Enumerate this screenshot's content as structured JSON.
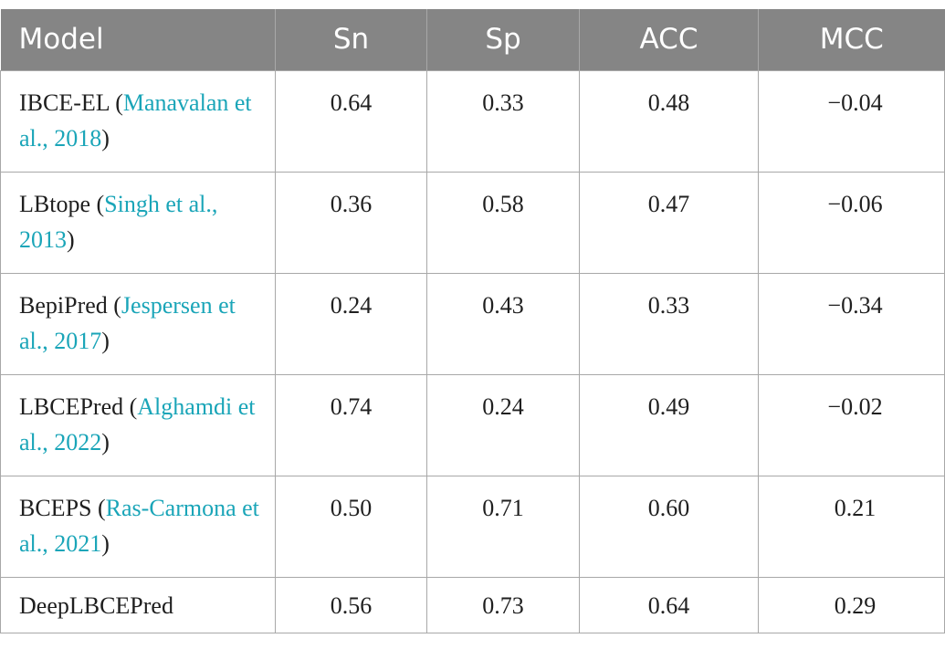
{
  "table": {
    "headers": [
      "Model",
      "Sn",
      "Sp",
      "ACC",
      "MCC"
    ],
    "rows": [
      {
        "model": "IBCE-EL",
        "citation": "Manavalan et al., 2018",
        "sn": "0.64",
        "sp": "0.33",
        "acc": "0.48",
        "mcc": "−0.04"
      },
      {
        "model": "LBtope",
        "citation": "Singh et al., 2013",
        "sn": "0.36",
        "sp": "0.58",
        "acc": "0.47",
        "mcc": "−0.06"
      },
      {
        "model": "BepiPred",
        "citation": "Jespersen et al., 2017",
        "sn": "0.24",
        "sp": "0.43",
        "acc": "0.33",
        "mcc": "−0.34"
      },
      {
        "model": "LBCEPred",
        "citation": "Alghamdi et al., 2022",
        "sn": "0.74",
        "sp": "0.24",
        "acc": "0.49",
        "mcc": "−0.02"
      },
      {
        "model": "BCEPS",
        "citation": "Ras-Carmona et al., 2021",
        "sn": "0.50",
        "sp": "0.71",
        "acc": "0.60",
        "mcc": "0.21"
      },
      {
        "model": "DeepLBCEPred",
        "citation": "",
        "sn": "0.56",
        "sp": "0.73",
        "acc": "0.64",
        "mcc": "0.29"
      }
    ]
  },
  "colors": {
    "header_bg": "#858585",
    "header_text": "#ffffff",
    "citation_link": "#1aa5b8",
    "border": "#a8a8a8"
  }
}
